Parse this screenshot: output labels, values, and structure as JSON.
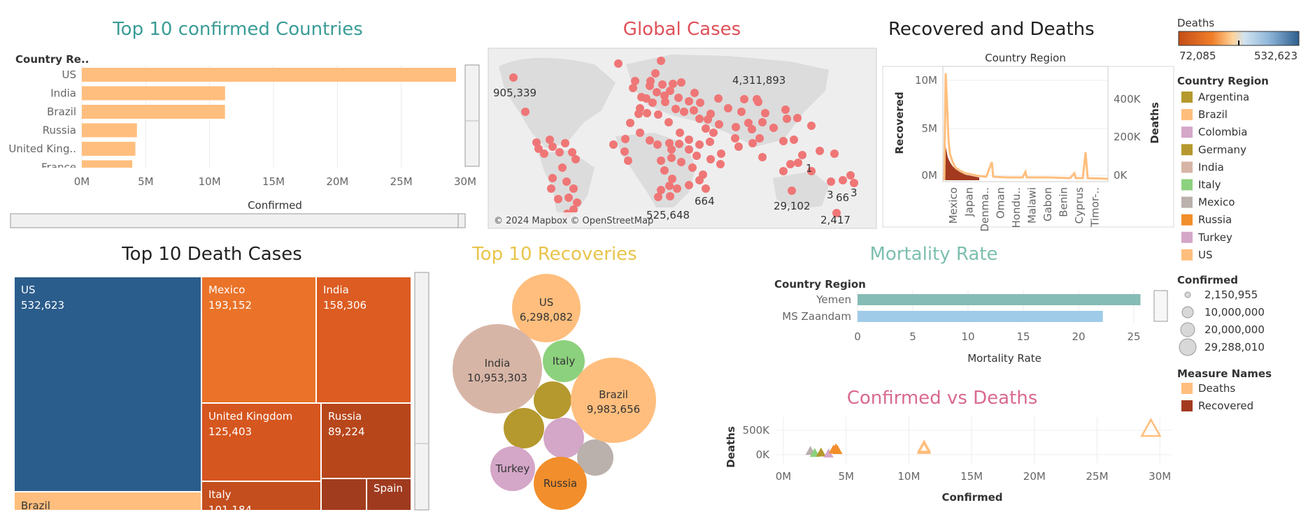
{
  "titles": {
    "top10_confirmed": "Top 10 confirmed Countries",
    "global_cases": "Global Cases",
    "recovered_deaths": "Recovered and Deaths",
    "top10_deaths": "Top 10 Death Cases",
    "top10_recoveries": "Top 10 Recoveries",
    "mortality_rate": "Mortality Rate",
    "confirmed_vs_deaths": "Confirmed vs Deaths"
  },
  "colors": {
    "teal_title": "#3a9c97",
    "red_title": "#e05058",
    "yellow_title": "#e8c44a",
    "mint_title": "#7dbfb0",
    "pink_title": "#d9698f",
    "bar_orange": "#ffbe7d",
    "map_dot": "#ef7676",
    "recovered": "#a33a1f",
    "deaths": "#ffbe7d",
    "mort_teal": "#86bcb6",
    "mort_blue": "#a0cbe8"
  },
  "map": {
    "attribution": "© 2024 Mapbox © OpenStreetMap",
    "labels": [
      "905,339",
      "4,311,893",
      "664",
      "29,102",
      "1",
      "3",
      "66",
      "3",
      "2,417",
      "525,648"
    ]
  },
  "chart_data": [
    {
      "type": "bar",
      "orientation": "horizontal",
      "title": "Top 10 confirmed Countries",
      "row_header": "Country Re..",
      "xlabel": "Confirmed",
      "categories": [
        "US",
        "India",
        "Brazil",
        "Russia",
        "United King..",
        "France"
      ],
      "values": [
        29288010,
        11210799,
        11202305,
        4312181,
        4190000,
        3950000
      ],
      "xlim": [
        0,
        30000000
      ],
      "xticks": [
        "0M",
        "5M",
        "10M",
        "15M",
        "20M",
        "25M",
        "30M"
      ]
    },
    {
      "type": "line",
      "title": "Country Region",
      "ylabel_left": "Recovered",
      "ylabel_right": "Deaths",
      "yticks_left": [
        "10M",
        "5M",
        "0M"
      ],
      "yticks_right": [
        "400K",
        "200K",
        "0K"
      ],
      "x_categories": [
        "Mexico",
        "Japan",
        "Denma..",
        "Oman",
        "Hondu..",
        "Malawi",
        "Gabon",
        "Benin",
        "Cyprus",
        "Timor-.."
      ]
    },
    {
      "type": "treemap",
      "title": "Top 10 Death Cases",
      "items": [
        {
          "label": "US",
          "value": "532,623"
        },
        {
          "label": "Mexico",
          "value": "193,152"
        },
        {
          "label": "India",
          "value": "158,306"
        },
        {
          "label": "United Kingdom",
          "value": "125,403"
        },
        {
          "label": "Russia",
          "value": "89,224"
        },
        {
          "label": "Brazil",
          "value": ""
        },
        {
          "label": "Italy",
          "value": "101,184"
        },
        {
          "label": "Spain",
          "value": ""
        }
      ]
    },
    {
      "type": "bubble",
      "title": "Top 10 Recoveries",
      "items": [
        {
          "label": "US",
          "value": "6,298,082"
        },
        {
          "label": "India",
          "value": "10,953,303"
        },
        {
          "label": "Italy",
          "value": ""
        },
        {
          "label": "Brazil",
          "value": "9,983,656"
        },
        {
          "label": "Turkey",
          "value": ""
        },
        {
          "label": "Russia",
          "value": ""
        }
      ]
    },
    {
      "type": "bar",
      "orientation": "horizontal",
      "title": "Mortality Rate",
      "row_header": "Country Region",
      "xlabel": "Mortality Rate",
      "categories": [
        "Yemen",
        "MS Zaandam"
      ],
      "values": [
        25.6,
        22.2
      ],
      "xlim": [
        0,
        26
      ],
      "xticks": [
        "0",
        "5",
        "10",
        "15",
        "20",
        "25"
      ]
    },
    {
      "type": "scatter",
      "title": "Confirmed vs Deaths",
      "xlabel": "Confirmed",
      "ylabel": "Deaths",
      "xticks": [
        "0M",
        "5M",
        "10M",
        "15M",
        "20M",
        "25M",
        "30M"
      ],
      "yticks": [
        "500K",
        "0K"
      ],
      "points": [
        {
          "x": 29288010,
          "y": 532623
        },
        {
          "x": 11202305,
          "y": 125000
        },
        {
          "x": 11210799,
          "y": 158306
        },
        {
          "x": 4312181,
          "y": 89224
        },
        {
          "x": 4190000,
          "y": 125403
        },
        {
          "x": 2150955,
          "y": 72085
        },
        {
          "x": 2500000,
          "y": 30000
        },
        {
          "x": 3000000,
          "y": 40000
        },
        {
          "x": 3600000,
          "y": 20000
        },
        {
          "x": 4000000,
          "y": 100000
        }
      ]
    }
  ],
  "legend": {
    "deaths_title": "Deaths",
    "deaths_min": "72,085",
    "deaths_max": "532,623",
    "country_title": "Country Region",
    "countries": [
      {
        "name": "Argentina",
        "color": "#b5992e"
      },
      {
        "name": "Brazil",
        "color": "#ffbe7d"
      },
      {
        "name": "Colombia",
        "color": "#d4a6c8"
      },
      {
        "name": "Germany",
        "color": "#b5992e"
      },
      {
        "name": "India",
        "color": "#d7b5a6"
      },
      {
        "name": "Italy",
        "color": "#8cd17d"
      },
      {
        "name": "Mexico",
        "color": "#bab0ac"
      },
      {
        "name": "Russia",
        "color": "#f28e2b"
      },
      {
        "name": "Turkey",
        "color": "#d4a6c8"
      },
      {
        "name": "US",
        "color": "#ffbe7d"
      }
    ],
    "confirmed_title": "Confirmed",
    "confirmed_sizes": [
      "2,150,955",
      "10,000,000",
      "20,000,000",
      "29,288,010"
    ],
    "measure_title": "Measure Names",
    "measures": [
      {
        "name": "Deaths",
        "color": "#ffbe7d"
      },
      {
        "name": "Recovered",
        "color": "#a33a1f"
      }
    ]
  }
}
